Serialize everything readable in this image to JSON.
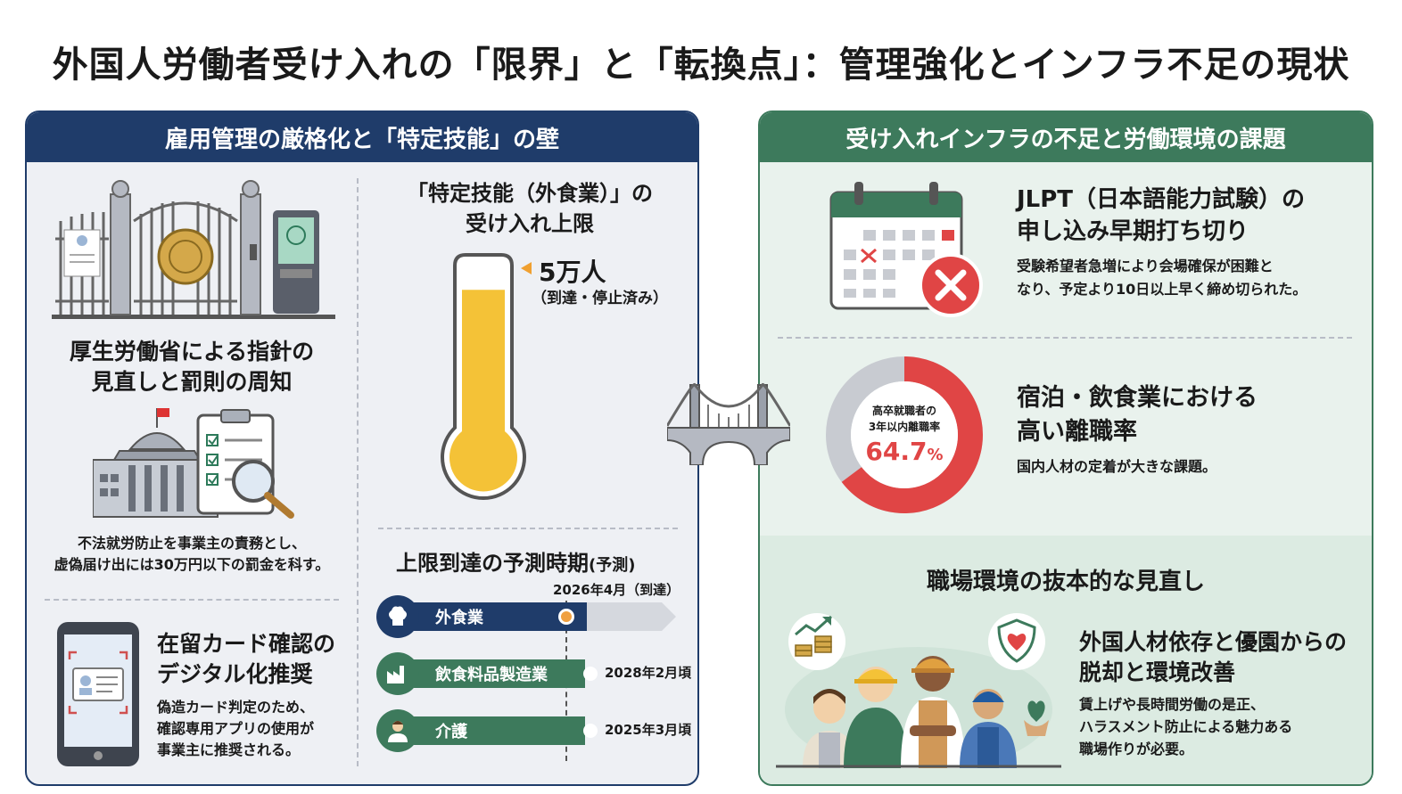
{
  "title": "外国人労働者受け入れの「限界」と「転換点」：管理強化とインフラ不足の現状",
  "colors": {
    "navy": "#1f3c6a",
    "green": "#3d7a5c",
    "yellow": "#f4c237",
    "red": "#e04545",
    "gray": "#c8cbd1",
    "orange": "#f0a040"
  },
  "left": {
    "header": "雇用管理の厳格化と「特定技能」の壁",
    "gate_icon": "gate-icon",
    "guideline": {
      "title_line1": "厚生労働省による指針の",
      "title_line2": "見直しと罰則の周知",
      "icon": "government-building-icon",
      "desc_line1": "不法就労防止を事業主の責務とし、",
      "desc_line2": "虚偽届け出には30万円以下の罰金を科す。"
    },
    "card": {
      "icon": "smartphone-id-icon",
      "title_line1": "在留カード確認の",
      "title_line2": "デジタル化推奨",
      "desc_line1": "偽造カード判定のため、",
      "desc_line2": "確認専用アプリの使用が",
      "desc_line3": "事業主に推奨される。"
    },
    "cap": {
      "title_line1": "「特定技能（外食業）」の",
      "title_line2": "受け入れ上限",
      "value": "5万人",
      "status": "（到達・停止済み）",
      "fill_fraction": 0.85,
      "icon": "thermometer-icon"
    },
    "forecast": {
      "title": "上限到達の予測時期",
      "title_note": "(予測)",
      "top_date": "2026年4月（到達）",
      "items": [
        {
          "label": "外食業",
          "icon": "chef-hat-icon",
          "progress": 1.0,
          "date": ""
        },
        {
          "label": "飲食料品製造業",
          "icon": "factory-icon",
          "progress": 0.82,
          "date": "2028年2月頃"
        },
        {
          "label": "介護",
          "icon": "caregiver-icon",
          "progress": 0.82,
          "date": "2025年3月頃"
        }
      ]
    }
  },
  "right": {
    "header": "受け入れインフラの不足と労働環境の課題",
    "jlpt": {
      "icon": "calendar-cancel-icon",
      "title_line1": "JLPT（日本語能力試験）の",
      "title_line2": "申し込み早期打ち切り",
      "desc_line1": "受験希望者急増により会場確保が困難と",
      "desc_line2": "なり、予定より10日以上早く締め切られた。"
    },
    "turnover": {
      "donut_label_line1": "高卒就職者の",
      "donut_label_line2": "3年以内離職率",
      "value": "64.7",
      "unit": "%",
      "fraction": 0.647,
      "title_line1": "宿泊・飲食業における",
      "title_line2": "高い離職率",
      "desc": "国内人材の定着が大きな課題。"
    },
    "workplace": {
      "header": "職場環境の抜本的な見直し",
      "icons": [
        "growth-coins-icon",
        "heart-shield-icon",
        "workers-group-icon"
      ],
      "title_line1": "外国人材依存と優園からの",
      "title_line2": "脱却と環境改善",
      "desc_line1": "賃上げや長時間労働の是正、",
      "desc_line2": "ハラスメント防止による魅力ある",
      "desc_line3": "職場作りが必要。"
    }
  },
  "bridge_icon": "bridge-icon"
}
